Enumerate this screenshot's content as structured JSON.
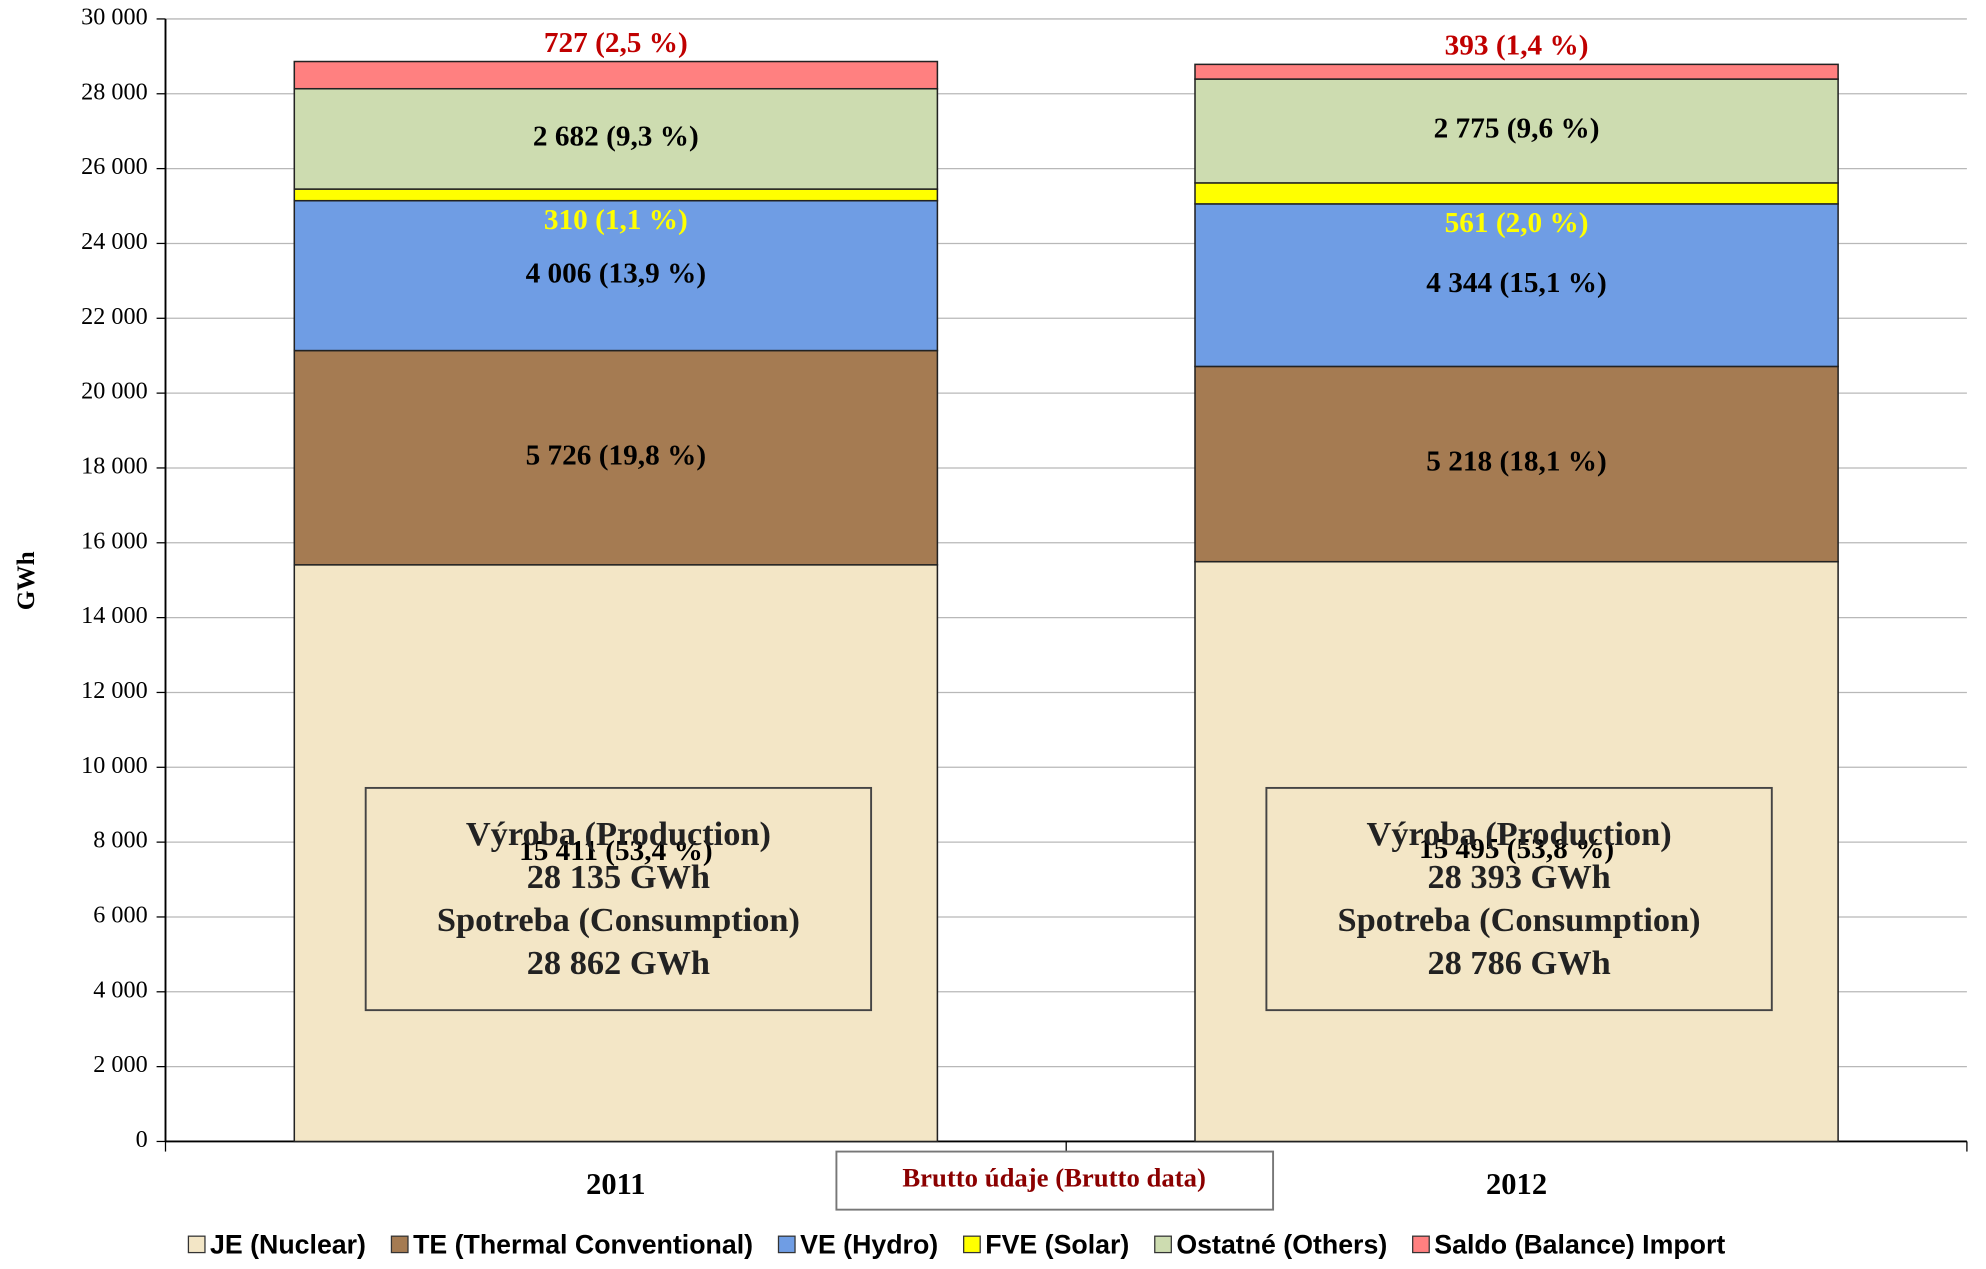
{
  "chart_data": {
    "type": "stacked_bar",
    "ylabel": "GWh",
    "categories": [
      "2011",
      "2012"
    ],
    "series": [
      {
        "name": "JE (Nuclear)",
        "color": "#f3e6c6",
        "label_color": "#000000",
        "values": [
          15411,
          15495
        ],
        "value_labels": [
          "15 411  (53,4 %)",
          "15 495  (53,8 %)"
        ]
      },
      {
        "name": "TE (Thermal Conventional)",
        "color": "#a57b52",
        "label_color": "#000000",
        "values": [
          5726,
          5218
        ],
        "value_labels": [
          "5 726  (19,8 %)",
          "5 218  (18,1 %)"
        ]
      },
      {
        "name": "VE (Hydro)",
        "color": "#6f9de4",
        "label_color": "#000000",
        "values": [
          4006,
          4344
        ],
        "value_labels": [
          "4 006  (13,9 %)",
          "4 344  (15,1 %)"
        ]
      },
      {
        "name": "FVE (Solar)",
        "color": "#ffff00",
        "label_color": "#ffff00",
        "values": [
          310,
          561
        ],
        "value_labels": [
          "310  (1,1 %)",
          "561  (2,0 %)"
        ]
      },
      {
        "name": "Ostatné (Others)",
        "color": "#cddcb0",
        "label_color": "#000000",
        "values": [
          2682,
          2775
        ],
        "value_labels": [
          "2 682  (9,3 %)",
          "2 775  (9,6 %)"
        ]
      },
      {
        "name": "Saldo (Balance) Import",
        "color": "#ff8080",
        "label_color": "#c00000",
        "values": [
          727,
          393
        ],
        "value_labels": [
          "727 (2,5  %)",
          "393 (1,4 %)"
        ]
      }
    ],
    "ylim": [
      0,
      30000
    ],
    "yticks": [
      0,
      {
        "value": 2000,
        "label": "2 000"
      },
      {
        "value": 4000,
        "label": "4 000"
      },
      {
        "value": 6000,
        "label": "6 000"
      },
      {
        "value": 8000,
        "label": "8 000"
      },
      {
        "value": 10000,
        "label": "10 000"
      },
      {
        "value": 12000,
        "label": "12 000"
      },
      {
        "value": 14000,
        "label": "14 000"
      },
      {
        "value": 16000,
        "label": "16 000"
      },
      {
        "value": 18000,
        "label": "18 000"
      },
      {
        "value": 20000,
        "label": "20 000"
      },
      {
        "value": 22000,
        "label": "22 000"
      },
      {
        "value": 24000,
        "label": "24 000"
      },
      {
        "value": 26000,
        "label": "26 000"
      },
      {
        "value": 28000,
        "label": "28 000"
      },
      {
        "value": 30000,
        "label": "30 000"
      }
    ],
    "grid": true,
    "legend": "bottom",
    "annotations": [
      [
        "Výroba (Production)",
        "28 135 GWh",
        "Spotreba (Consumption)",
        "28 862 GWh"
      ],
      [
        "Výroba (Production)",
        "28 393 GWh",
        "Spotreba (Consumption)",
        "28 786 GWh"
      ]
    ],
    "note": "Brutto údaje (Brutto data)"
  }
}
